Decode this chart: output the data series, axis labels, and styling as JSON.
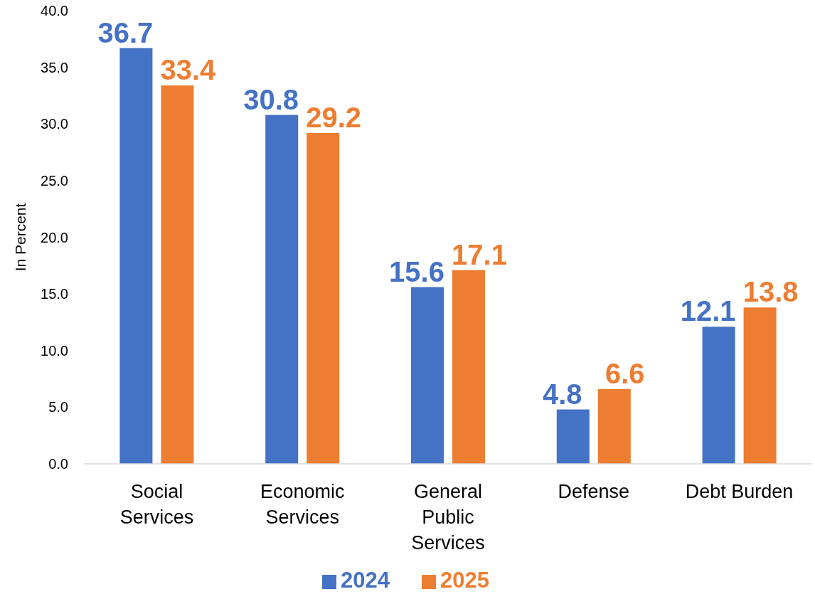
{
  "chart_data": {
    "type": "bar",
    "ylabel": "In Percent",
    "categories": [
      "Social Services",
      "Economic Services",
      "General Public Services",
      "Defense",
      "Debt Burden"
    ],
    "series": [
      {
        "name": "2024",
        "color": "#4472c4",
        "values": [
          36.7,
          30.8,
          15.6,
          4.8,
          12.1
        ]
      },
      {
        "name": "2025",
        "color": "#ed7d31",
        "values": [
          33.4,
          29.2,
          17.1,
          6.6,
          13.8
        ]
      }
    ],
    "ylim": [
      0,
      40
    ],
    "yticks": [
      {
        "value": 0,
        "label": "0.0"
      },
      {
        "value": 5,
        "label": "5.0"
      },
      {
        "value": 10,
        "label": "10.0"
      },
      {
        "value": 15,
        "label": "15.0"
      },
      {
        "value": 20,
        "label": "20.0"
      },
      {
        "value": 25,
        "label": "25.0"
      },
      {
        "value": 30,
        "label": "30.0"
      },
      {
        "value": 35,
        "label": "35.0"
      },
      {
        "value": 40,
        "label": "40.0"
      }
    ],
    "data_labels": true,
    "legend": "bottom",
    "grid": false
  }
}
